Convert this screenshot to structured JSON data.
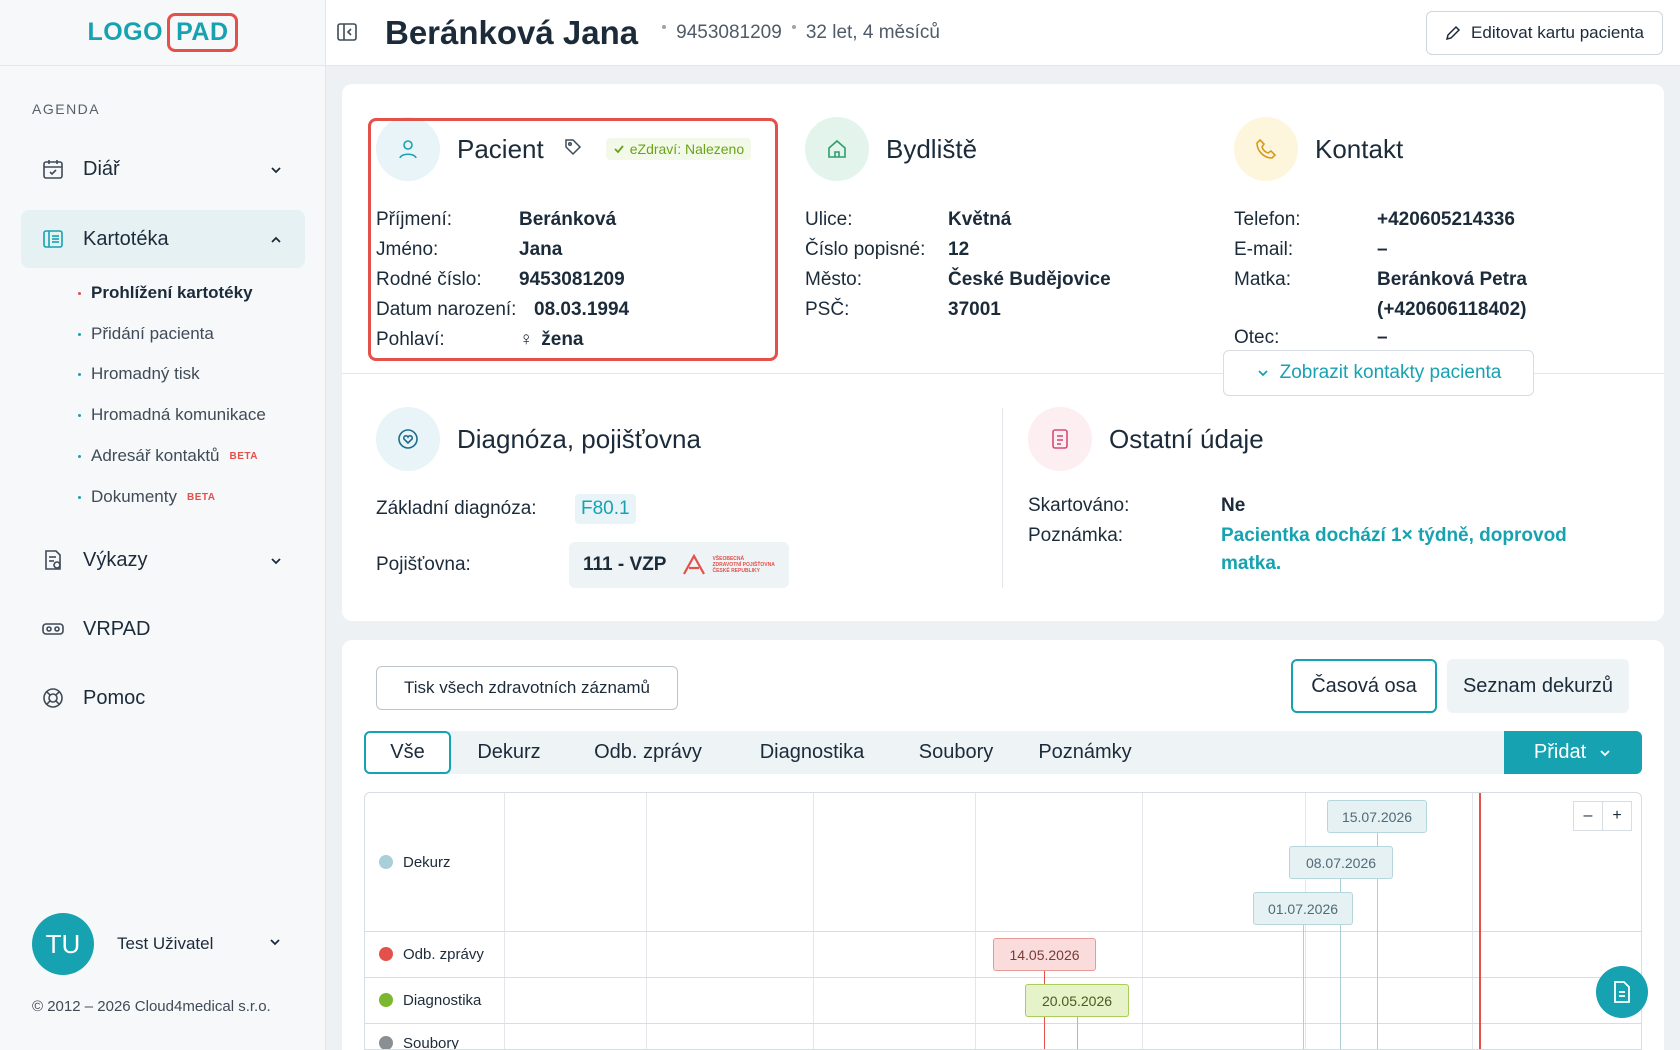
{
  "app": {
    "logo_left": "LOGO",
    "logo_right": "PAD"
  },
  "sidebar": {
    "section_label": "AGENDA",
    "items": [
      {
        "label": "Diář",
        "icon": "calendar-icon"
      },
      {
        "label": "Kartotéka",
        "icon": "folder-icon"
      },
      {
        "label": "Výkazy",
        "icon": "report-icon"
      },
      {
        "label": "VRPAD",
        "icon": "vr-headset-icon"
      },
      {
        "label": "Pomoc",
        "icon": "lifebuoy-icon"
      }
    ],
    "subitems": [
      {
        "label": "Prohlížení kartotéky"
      },
      {
        "label": "Přidání pacienta"
      },
      {
        "label": "Hromadný tisk"
      },
      {
        "label": "Hromadná komunikace"
      },
      {
        "label": "Adresář kontaktů",
        "badge": "BETA"
      },
      {
        "label": "Dokumenty",
        "badge": "BETA"
      }
    ],
    "user": {
      "initials": "TU",
      "name": "Test Uživatel"
    },
    "copyright": "© 2012 – 2026 Cloud4medical s.r.o."
  },
  "header": {
    "patient_name": "Beránková Jana",
    "birth_number": "9453081209",
    "age": "32 let, 4 měsíců",
    "edit_label": "Editovat kartu pacienta"
  },
  "patient": {
    "title": "Pacient",
    "ezdravi": "eZdraví: Nalezeno",
    "fields": [
      {
        "k": "Příjmení:",
        "v": "Beránková"
      },
      {
        "k": "Jméno:",
        "v": "Jana"
      },
      {
        "k": "Rodné číslo:",
        "v": "9453081209"
      },
      {
        "k": "Datum narození:",
        "v": "08.03.1994"
      },
      {
        "k": "Pohlaví:",
        "v": "žena",
        "symbol": "♀"
      }
    ]
  },
  "address": {
    "title": "Bydliště",
    "fields": [
      {
        "k": "Ulice:",
        "v": "Květná"
      },
      {
        "k": "Číslo popisné:",
        "v": "12"
      },
      {
        "k": "Město:",
        "v": "České Budějovice"
      },
      {
        "k": "PSČ:",
        "v": "37001"
      }
    ]
  },
  "contact": {
    "title": "Kontakt",
    "fields": [
      {
        "k": "Telefon:",
        "v": "+420605214336"
      },
      {
        "k": "E-mail:",
        "v": "–"
      },
      {
        "k": "Matka:",
        "v": "Beránková Petra",
        "v2": "(+420606118402)"
      },
      {
        "k": "Otec:",
        "v": "–"
      }
    ],
    "show_contacts_label": "Zobrazit kontakty pacienta"
  },
  "diagnosis": {
    "title": "Diagnóza, pojišťovna",
    "base_label": "Základní diagnóza:",
    "base_value": "F80.1",
    "insurer_label": "Pojišťovna:",
    "insurer_value": "111 - VZP",
    "insurer_logo_text": [
      "VŠEOBECNÁ",
      "ZDRAVOTNÍ POJIŠŤOVNA",
      "ČESKÉ REPUBLIKY"
    ]
  },
  "other": {
    "title": "Ostatní údaje",
    "shredded_label": "Skartováno:",
    "shredded_value": "Ne",
    "note_label": "Poznámka:",
    "note_value_1": "Pacientka dochází 1× týdně, doprovod",
    "note_value_2": "matka."
  },
  "records": {
    "print_all_label": "Tisk všech zdravotních záznamů",
    "view_timeline": "Časová osa",
    "view_list": "Seznam dekurzů",
    "tabs": [
      "Vše",
      "Dekurz",
      "Odb. zprávy",
      "Diagnostika",
      "Soubory",
      "Poznámky"
    ],
    "add_label": "Přidat",
    "zoom_out": "–",
    "zoom_in": "+",
    "timeline_rows": [
      {
        "label": "Dekurz",
        "color": "#a9cfd8"
      },
      {
        "label": "Odb. zprávy",
        "color": "#e4504a"
      },
      {
        "label": "Diagnostika",
        "color": "#7cb82f"
      },
      {
        "label": "Soubory",
        "color": "#8a8f94"
      }
    ],
    "events": {
      "dekurz": [
        "15.07.2026",
        "08.07.2026",
        "01.07.2026"
      ],
      "odb": [
        "14.05.2026"
      ],
      "diag": [
        "20.05.2026"
      ]
    }
  },
  "colors": {
    "accent": "#17a2b1",
    "highlight": "#e4504a"
  }
}
